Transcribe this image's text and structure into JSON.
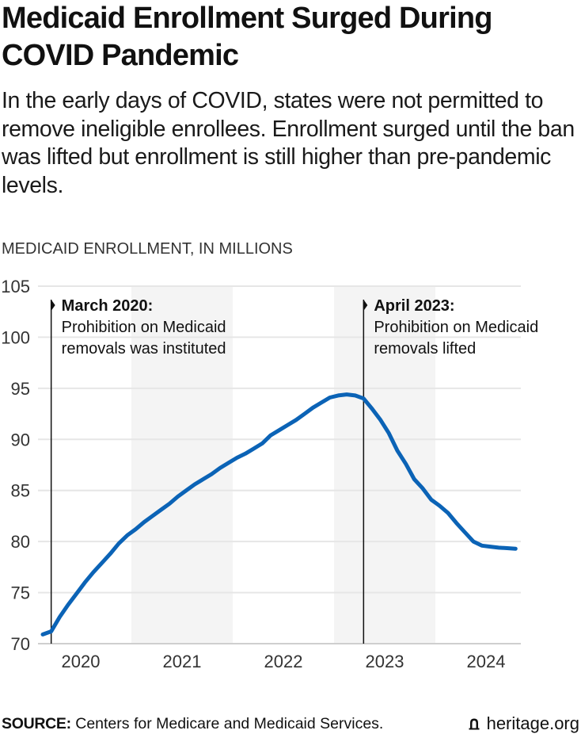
{
  "header": {
    "title": "Medicaid Enrollment Surged During COVID Pandemic",
    "subtitle": "In the early days of COVID, states were not permitted to remove ineligible enrollees. Enrollment surged until the ban was lifted but enrollment is still higher than pre-pandemic levels."
  },
  "footer": {
    "source_label": "SOURCE:",
    "source_text": " Centers for Medicare and Medicaid Services.",
    "brand_icon": "liberty-bell-icon",
    "brand_text": "heritage.org"
  },
  "colors": {
    "line": "#0b63b6",
    "band": "#f4f4f4",
    "grid": "#e6e6e6",
    "annotation_line": "#111111"
  },
  "chart_data": {
    "type": "line",
    "title": "Medicaid Enrollment Surged During COVID Pandemic",
    "ylabel": "MEDICAID ENROLLMENT, IN MILLIONS",
    "xlabel": "",
    "ylim": [
      70,
      105
    ],
    "yticks": [
      70,
      75,
      80,
      85,
      90,
      95,
      100,
      105
    ],
    "xlim": [
      "2020-01",
      "2024-12"
    ],
    "xticks": [
      {
        "label": "2020",
        "year": 2020
      },
      {
        "label": "2021",
        "year": 2021
      },
      {
        "label": "2022",
        "year": 2022
      },
      {
        "label": "2023",
        "year": 2023
      },
      {
        "label": "2024",
        "year": 2024
      }
    ],
    "shaded_years": [
      2021,
      2023
    ],
    "grid": true,
    "legend": "none",
    "series": [
      {
        "name": "Medicaid enrollment (millions)",
        "x": [
          "2020-02",
          "2020-03",
          "2020-04",
          "2020-05",
          "2020-06",
          "2020-07",
          "2020-08",
          "2020-09",
          "2020-10",
          "2020-11",
          "2020-12",
          "2021-01",
          "2021-02",
          "2021-03",
          "2021-04",
          "2021-05",
          "2021-06",
          "2021-07",
          "2021-08",
          "2021-09",
          "2021-10",
          "2021-11",
          "2021-12",
          "2022-01",
          "2022-02",
          "2022-03",
          "2022-04",
          "2022-05",
          "2022-06",
          "2022-07",
          "2022-08",
          "2022-09",
          "2022-10",
          "2022-11",
          "2022-12",
          "2023-01",
          "2023-02",
          "2023-03",
          "2023-04",
          "2023-05",
          "2023-06",
          "2023-07",
          "2023-08",
          "2023-09",
          "2023-10",
          "2023-11",
          "2023-12",
          "2024-01",
          "2024-02",
          "2024-03",
          "2024-04",
          "2024-05",
          "2024-06",
          "2024-07",
          "2024-08",
          "2024-09",
          "2024-10"
        ],
        "values": [
          70.9,
          71.2,
          72.6,
          73.8,
          74.9,
          76.0,
          77.0,
          77.9,
          78.8,
          79.8,
          80.6,
          81.2,
          81.9,
          82.5,
          83.1,
          83.7,
          84.4,
          85.0,
          85.6,
          86.1,
          86.6,
          87.2,
          87.7,
          88.2,
          88.6,
          89.1,
          89.6,
          90.4,
          90.9,
          91.4,
          91.9,
          92.5,
          93.1,
          93.6,
          94.1,
          94.3,
          94.4,
          94.3,
          94.0,
          93.0,
          91.9,
          90.6,
          88.9,
          87.6,
          86.1,
          85.2,
          84.1,
          83.5,
          82.8,
          81.8,
          80.9,
          80.0,
          79.6,
          79.5,
          79.4,
          79.35,
          79.3
        ]
      }
    ],
    "annotations": [
      {
        "date": "2020-03",
        "heading": "March 2020:",
        "line1": "Prohibition on Medicaid",
        "line2": "removals was instituted"
      },
      {
        "date": "2023-04",
        "heading": "April 2023:",
        "line1": "Prohibition on Medicaid",
        "line2": "removals lifted"
      }
    ]
  }
}
